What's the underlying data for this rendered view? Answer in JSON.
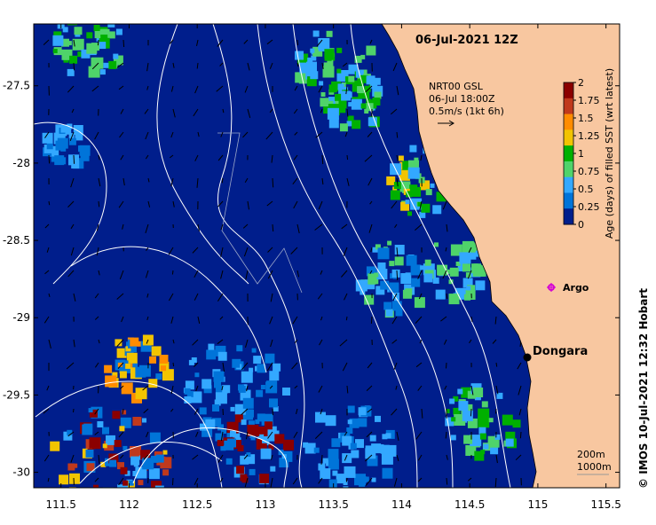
{
  "map": {
    "title": "06-Jul-2021 12Z",
    "current_info": {
      "source": "NRT00 GSL",
      "time": "06-Jul 18:00Z",
      "scale": "0.5m/s (1kt 6h)"
    },
    "colorbar": {
      "label": "Age (days) of filled SST (wrt latest)",
      "min": 0,
      "max": 2,
      "ticks": [
        "2",
        "1.75",
        "1.5",
        "1.25",
        "1",
        "0.75",
        "0.5",
        "0.25",
        "0"
      ],
      "colors": [
        "#8b0000",
        "#c0391c",
        "#ff8c00",
        "#f2c400",
        "#00b000",
        "#4fd36a",
        "#33a8ff",
        "#0074d9",
        "#001e8c"
      ]
    },
    "x_axis": {
      "labels": [
        "111.5",
        "112",
        "112.5",
        "113",
        "113.5",
        "114",
        "114.5",
        "115",
        "115.5"
      ],
      "values": [
        111.5,
        112,
        112.5,
        113,
        113.5,
        114,
        114.5,
        115,
        115.5
      ],
      "range": [
        111.3,
        115.6
      ]
    },
    "y_axis": {
      "labels": [
        "-27.5",
        "-28",
        "-28.5",
        "-29",
        "-29.5",
        "-30"
      ],
      "values": [
        -27.5,
        -28,
        -28.5,
        -29,
        -29.5,
        -30
      ],
      "range": [
        -30.1,
        -27.1
      ]
    },
    "places": [
      {
        "name": "Dongara",
        "lon": 114.93,
        "lat": -29.26
      }
    ],
    "argo": {
      "label": "Argo",
      "lon": 115.1,
      "lat": -28.83
    },
    "depth_legend": [
      "200m",
      "1000m"
    ],
    "credit": "© IMOS 10-Jul-2021 12:32 Hobart",
    "colors": {
      "ocean": "#001e8c",
      "land": "#f8c7a0",
      "contour": "#ffffff",
      "arrow": "#000000"
    }
  }
}
